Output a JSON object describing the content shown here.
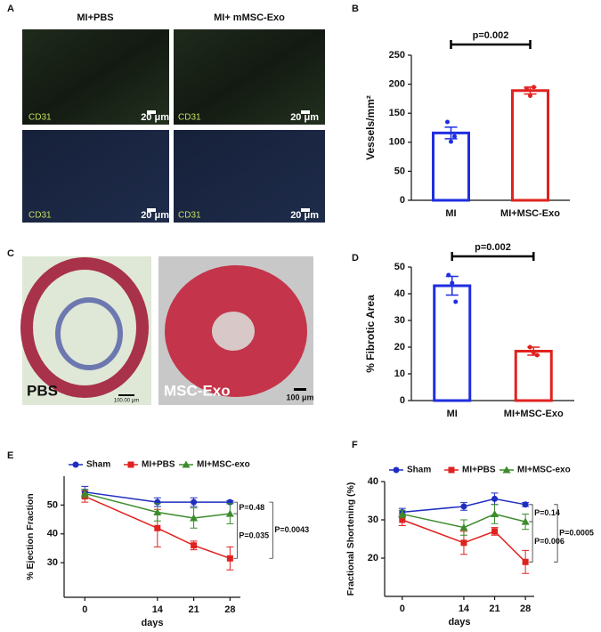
{
  "figure": {
    "panels": [
      "A",
      "B",
      "C",
      "D",
      "E",
      "F"
    ],
    "panel_a": {
      "col_titles": [
        "MI+PBS",
        "MI+ mMSC-Exo"
      ],
      "stain": [
        "CD31",
        "CD31",
        "CD31",
        "CD31"
      ],
      "scale": [
        "20 μm",
        "20 μm",
        "20 μm",
        "20 μm"
      ]
    },
    "panel_c": {
      "labels": [
        "PBS",
        "MSC-Exo"
      ],
      "scale": [
        "100.00 μm",
        "100 μm"
      ]
    }
  },
  "chart_data": [
    {
      "type": "bar",
      "categories": [
        "MI",
        "MI+MSC-Exo"
      ],
      "values": [
        116,
        189
      ],
      "errors": [
        10,
        6
      ],
      "points": [
        [
          135,
          101,
          110
        ],
        [
          192,
          180,
          195
        ]
      ],
      "colors": [
        "#1f2ee0",
        "#e0221f"
      ],
      "ylim": [
        0,
        250
      ],
      "yticks": [
        0,
        50,
        100,
        150,
        200,
        250
      ],
      "y_label": "Vessels/mm²",
      "annotation": "p=0.002"
    },
    {
      "type": "bar",
      "categories": [
        "MI",
        "MI+MSC-Exo"
      ],
      "values": [
        43,
        18.5
      ],
      "errors": [
        3.5,
        1.5
      ],
      "points": [
        [
          47,
          44,
          37
        ],
        [
          20,
          18,
          17
        ]
      ],
      "colors": [
        "#1f2ee0",
        "#e0221f"
      ],
      "ylim": [
        0,
        50
      ],
      "yticks": [
        0,
        10,
        20,
        30,
        40,
        50
      ],
      "y_label": "% Fibrotic Area",
      "annotation": "p=0.002"
    },
    {
      "type": "line",
      "x": [
        0,
        14,
        21,
        28
      ],
      "xlim": [
        -4,
        30
      ],
      "xticks": [
        0,
        14,
        21,
        28
      ],
      "ylim": [
        18,
        60
      ],
      "yticks": [
        30,
        40,
        50
      ],
      "x_label": "days",
      "y_label": "% Ejection Fraction",
      "legend": "top",
      "series": [
        {
          "name": "Sham",
          "color": "#1f2ec0",
          "marker": "circle",
          "values": [
            54.5,
            51,
            51,
            51
          ],
          "errors": [
            2,
            1.5,
            1.5,
            0.5
          ]
        },
        {
          "name": "MI+PBS",
          "color": "#e0221f",
          "marker": "square",
          "values": [
            53,
            42,
            36,
            31.5
          ],
          "errors": [
            2,
            6.5,
            1.5,
            4
          ]
        },
        {
          "name": "MI+MSC-exo",
          "color": "#3c8c2c",
          "marker": "triangle",
          "values": [
            54,
            47.5,
            45.5,
            47
          ],
          "errors": [
            1.5,
            3,
            3.5,
            3.5
          ]
        }
      ],
      "annotations": [
        "P=0.48",
        "P=0.035",
        "P=0.0043"
      ]
    },
    {
      "type": "line",
      "x": [
        0,
        14,
        21,
        28
      ],
      "xlim": [
        -4,
        30
      ],
      "xticks": [
        0,
        14,
        21,
        28
      ],
      "ylim": [
        10,
        40
      ],
      "yticks": [
        20,
        30,
        40
      ],
      "x_label": "days",
      "y_label": "Fractional Shortening (%)",
      "legend": "top",
      "series": [
        {
          "name": "Sham",
          "color": "#1f2ec0",
          "marker": "circle",
          "values": [
            32,
            33.5,
            35.5,
            34
          ],
          "errors": [
            1,
            1,
            1.5,
            0.5
          ]
        },
        {
          "name": "MI+PBS",
          "color": "#e0221f",
          "marker": "square",
          "values": [
            30,
            24,
            27,
            19
          ],
          "errors": [
            1.5,
            3,
            1,
            3
          ]
        },
        {
          "name": "MI+MSC-exo",
          "color": "#3c8c2c",
          "marker": "triangle",
          "values": [
            31.5,
            28,
            31.5,
            29.5
          ],
          "errors": [
            1,
            2,
            2.5,
            2
          ]
        }
      ],
      "annotations": [
        "P=0.14",
        "P=0.006",
        "P=0.0005"
      ]
    }
  ]
}
